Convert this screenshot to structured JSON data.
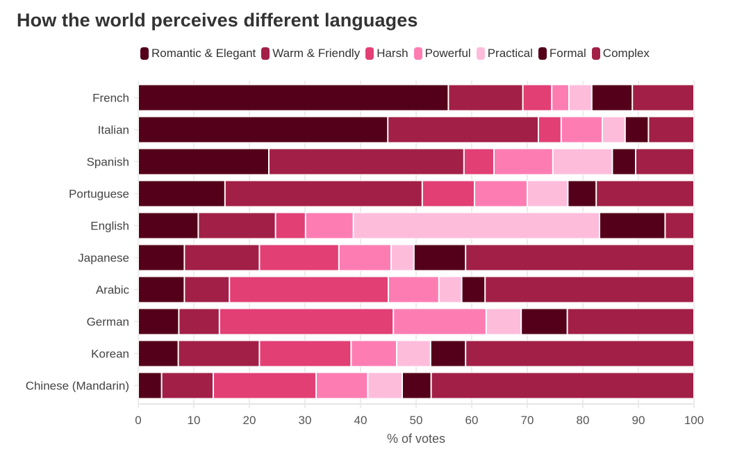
{
  "chart_data": {
    "type": "bar",
    "orientation": "horizontal",
    "stacked": true,
    "title": "How the world perceives different languages",
    "xlabel": "% of votes",
    "ylabel": "",
    "xlim": [
      0,
      100
    ],
    "xticks": [
      "0",
      "10",
      "20",
      "30",
      "40",
      "50",
      "60",
      "70",
      "80",
      "90",
      "100"
    ],
    "grid": true,
    "legend_position": "top",
    "categories": [
      "French",
      "Italian",
      "Spanish",
      "Portuguese",
      "English",
      "Japanese",
      "Arabic",
      "German",
      "Korean",
      "Chinese (Mandarin)"
    ],
    "series": [
      {
        "name": "Romantic & Elegant",
        "color": "#54001a",
        "values": [
          55.8,
          44.9,
          23.5,
          15.6,
          10.8,
          8.3,
          8.3,
          7.3,
          7.2,
          4.2
        ]
      },
      {
        "name": "Warm & Friendly",
        "color": "#a22047",
        "values": [
          13.4,
          27.1,
          35.1,
          35.5,
          13.9,
          13.5,
          8.1,
          7.3,
          14.6,
          9.3
        ]
      },
      {
        "name": "Harsh",
        "color": "#e23f75",
        "values": [
          5.2,
          4.1,
          5.4,
          9.4,
          5.4,
          14.3,
          28.6,
          31.3,
          16.5,
          18.5
        ]
      },
      {
        "name": "Powerful",
        "color": "#fd7db3",
        "values": [
          3.1,
          7.4,
          10.6,
          9.5,
          8.6,
          9.4,
          9.1,
          16.7,
          8.2,
          9.3
        ]
      },
      {
        "name": "Practical",
        "color": "#febcdb",
        "values": [
          4.1,
          4.1,
          10.7,
          7.3,
          44.3,
          4.1,
          4.1,
          6.3,
          6.1,
          6.2
        ]
      },
      {
        "name": "Formal",
        "color": "#54001a",
        "values": [
          7.3,
          4.2,
          4.2,
          5.1,
          11.8,
          9.3,
          4.2,
          8.3,
          6.3,
          5.2
        ]
      },
      {
        "name": "Complex",
        "color": "#a22047",
        "values": [
          11.1,
          8.2,
          10.5,
          17.6,
          5.2,
          41.1,
          37.6,
          22.8,
          41.1,
          47.3
        ]
      }
    ]
  }
}
